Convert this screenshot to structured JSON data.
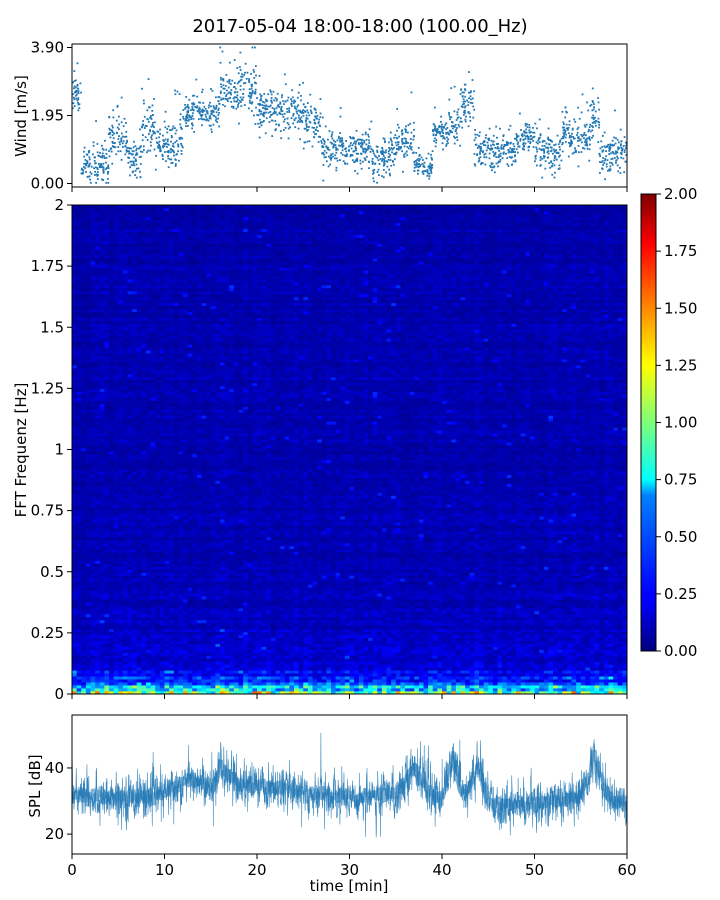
{
  "title": "2017-05-04 18:00-18:00 (100.00_Hz)",
  "chart_data": [
    {
      "id": "wind",
      "type": "scatter",
      "ylabel": "Wind [m/s]",
      "xlabel": "",
      "xlim": [
        0,
        60
      ],
      "ylim": [
        -0.1,
        4.0
      ],
      "yticks": [
        "0.00",
        "1.95",
        "3.90"
      ],
      "ytick_values": [
        0.0,
        1.95,
        3.9
      ],
      "color": "#1f77b4",
      "segments": [
        {
          "t0": 0,
          "t1": 1,
          "mean": 2.6,
          "spread": 0.5
        },
        {
          "t0": 1,
          "t1": 4,
          "mean": 0.55,
          "spread": 0.45
        },
        {
          "t0": 4,
          "t1": 6,
          "mean": 1.3,
          "spread": 0.55
        },
        {
          "t0": 6,
          "t1": 7.5,
          "mean": 0.7,
          "spread": 0.45
        },
        {
          "t0": 7.5,
          "t1": 9,
          "mean": 1.5,
          "spread": 0.6
        },
        {
          "t0": 9,
          "t1": 12,
          "mean": 1.1,
          "spread": 0.6
        },
        {
          "t0": 12,
          "t1": 16,
          "mean": 2.0,
          "spread": 0.45
        },
        {
          "t0": 16,
          "t1": 20,
          "mean": 2.7,
          "spread": 0.65
        },
        {
          "t0": 20,
          "t1": 25,
          "mean": 2.1,
          "spread": 0.6
        },
        {
          "t0": 25,
          "t1": 27,
          "mean": 1.7,
          "spread": 0.55
        },
        {
          "t0": 27,
          "t1": 32,
          "mean": 1.0,
          "spread": 0.5
        },
        {
          "t0": 32,
          "t1": 35,
          "mean": 0.8,
          "spread": 0.55
        },
        {
          "t0": 35,
          "t1": 37,
          "mean": 1.2,
          "spread": 0.5
        },
        {
          "t0": 37,
          "t1": 39,
          "mean": 0.5,
          "spread": 0.35
        },
        {
          "t0": 39,
          "t1": 42,
          "mean": 1.5,
          "spread": 0.45
        },
        {
          "t0": 42,
          "t1": 43.5,
          "mean": 2.3,
          "spread": 0.65
        },
        {
          "t0": 43.5,
          "t1": 48,
          "mean": 0.95,
          "spread": 0.45
        },
        {
          "t0": 48,
          "t1": 50,
          "mean": 1.3,
          "spread": 0.5
        },
        {
          "t0": 50,
          "t1": 53,
          "mean": 0.9,
          "spread": 0.5
        },
        {
          "t0": 53,
          "t1": 56,
          "mean": 1.3,
          "spread": 0.55
        },
        {
          "t0": 56,
          "t1": 57,
          "mean": 1.9,
          "spread": 0.6
        },
        {
          "t0": 57,
          "t1": 60,
          "mean": 0.9,
          "spread": 0.5
        }
      ]
    },
    {
      "id": "spectrogram",
      "type": "heatmap",
      "ylabel": "FFT Frequenz [Hz]",
      "xlabel": "",
      "xlim": [
        0,
        60
      ],
      "ylim": [
        0,
        2
      ],
      "yticks": [
        "0",
        "0.25",
        "0.5",
        "0.75",
        "1",
        "1.25",
        "1.5",
        "1.75",
        "2"
      ],
      "ytick_values": [
        0,
        0.25,
        0.5,
        0.75,
        1.0,
        1.25,
        1.5,
        1.75,
        2.0
      ],
      "colormap": "jet",
      "clim": [
        0.0,
        2.0
      ],
      "colorbar_ticks": [
        "0.00",
        "0.25",
        "0.50",
        "0.75",
        "1.00",
        "1.25",
        "1.50",
        "1.75",
        "2.00"
      ],
      "colorbar_tick_values": [
        0.0,
        0.25,
        0.5,
        0.75,
        1.0,
        1.25,
        1.5,
        1.75,
        2.0
      ],
      "description_levels": {
        "low_freq_peak": 1.6,
        "background": 0.25
      }
    },
    {
      "id": "spl",
      "type": "line",
      "ylabel": "SPL [dB]",
      "xlabel": "time [min]",
      "xlim": [
        0,
        60
      ],
      "ylim": [
        14,
        56
      ],
      "yticks": [
        "20",
        "40"
      ],
      "ytick_values": [
        20,
        40
      ],
      "xticks": [
        "0",
        "10",
        "20",
        "30",
        "40",
        "50",
        "60"
      ],
      "xtick_values": [
        0,
        10,
        20,
        30,
        40,
        50,
        60
      ],
      "color": "#1f77b4",
      "envelope": [
        {
          "t": 0,
          "mean": 32
        },
        {
          "t": 5,
          "mean": 31
        },
        {
          "t": 10,
          "mean": 32
        },
        {
          "t": 12,
          "mean": 36
        },
        {
          "t": 14,
          "mean": 36
        },
        {
          "t": 15,
          "mean": 33
        },
        {
          "t": 16,
          "mean": 40
        },
        {
          "t": 18,
          "mean": 35
        },
        {
          "t": 25,
          "mean": 33
        },
        {
          "t": 30,
          "mean": 31
        },
        {
          "t": 35,
          "mean": 32
        },
        {
          "t": 37,
          "mean": 41
        },
        {
          "t": 38.5,
          "mean": 32
        },
        {
          "t": 40,
          "mean": 31
        },
        {
          "t": 41.2,
          "mean": 44
        },
        {
          "t": 42,
          "mean": 33
        },
        {
          "t": 43,
          "mean": 34
        },
        {
          "t": 44,
          "mean": 41
        },
        {
          "t": 45,
          "mean": 29
        },
        {
          "t": 50,
          "mean": 29
        },
        {
          "t": 55,
          "mean": 31
        },
        {
          "t": 56.5,
          "mean": 43
        },
        {
          "t": 58,
          "mean": 31
        },
        {
          "t": 60,
          "mean": 29
        }
      ]
    }
  ]
}
